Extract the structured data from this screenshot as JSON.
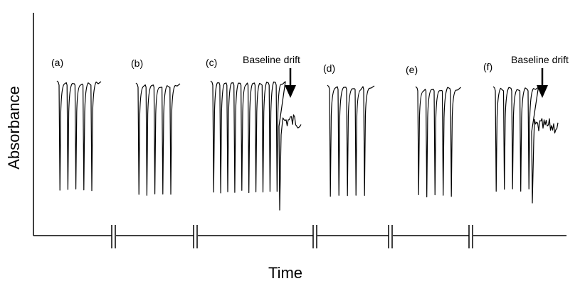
{
  "chart_data": {
    "type": "line",
    "xlabel": "Time",
    "ylabel": "Absorbance",
    "y_tick_labels": "none",
    "x_tick_labels": "none",
    "axis_breaks_on_x": 5,
    "panels": [
      {
        "label": "(a)",
        "peaks": 5,
        "baseline_drift": false
      },
      {
        "label": "(b)",
        "peaks": 5,
        "baseline_drift": false
      },
      {
        "label": "(c)",
        "peaks": 10,
        "baseline_drift": true,
        "annotation": "Baseline drift"
      },
      {
        "label": "(d)",
        "peaks": 5,
        "baseline_drift": false
      },
      {
        "label": "(e)",
        "peaks": 5,
        "baseline_drift": false
      },
      {
        "label": "(f)",
        "peaks": 5,
        "baseline_drift": true,
        "annotation": "Baseline drift"
      }
    ],
    "line_color": "#000000"
  }
}
